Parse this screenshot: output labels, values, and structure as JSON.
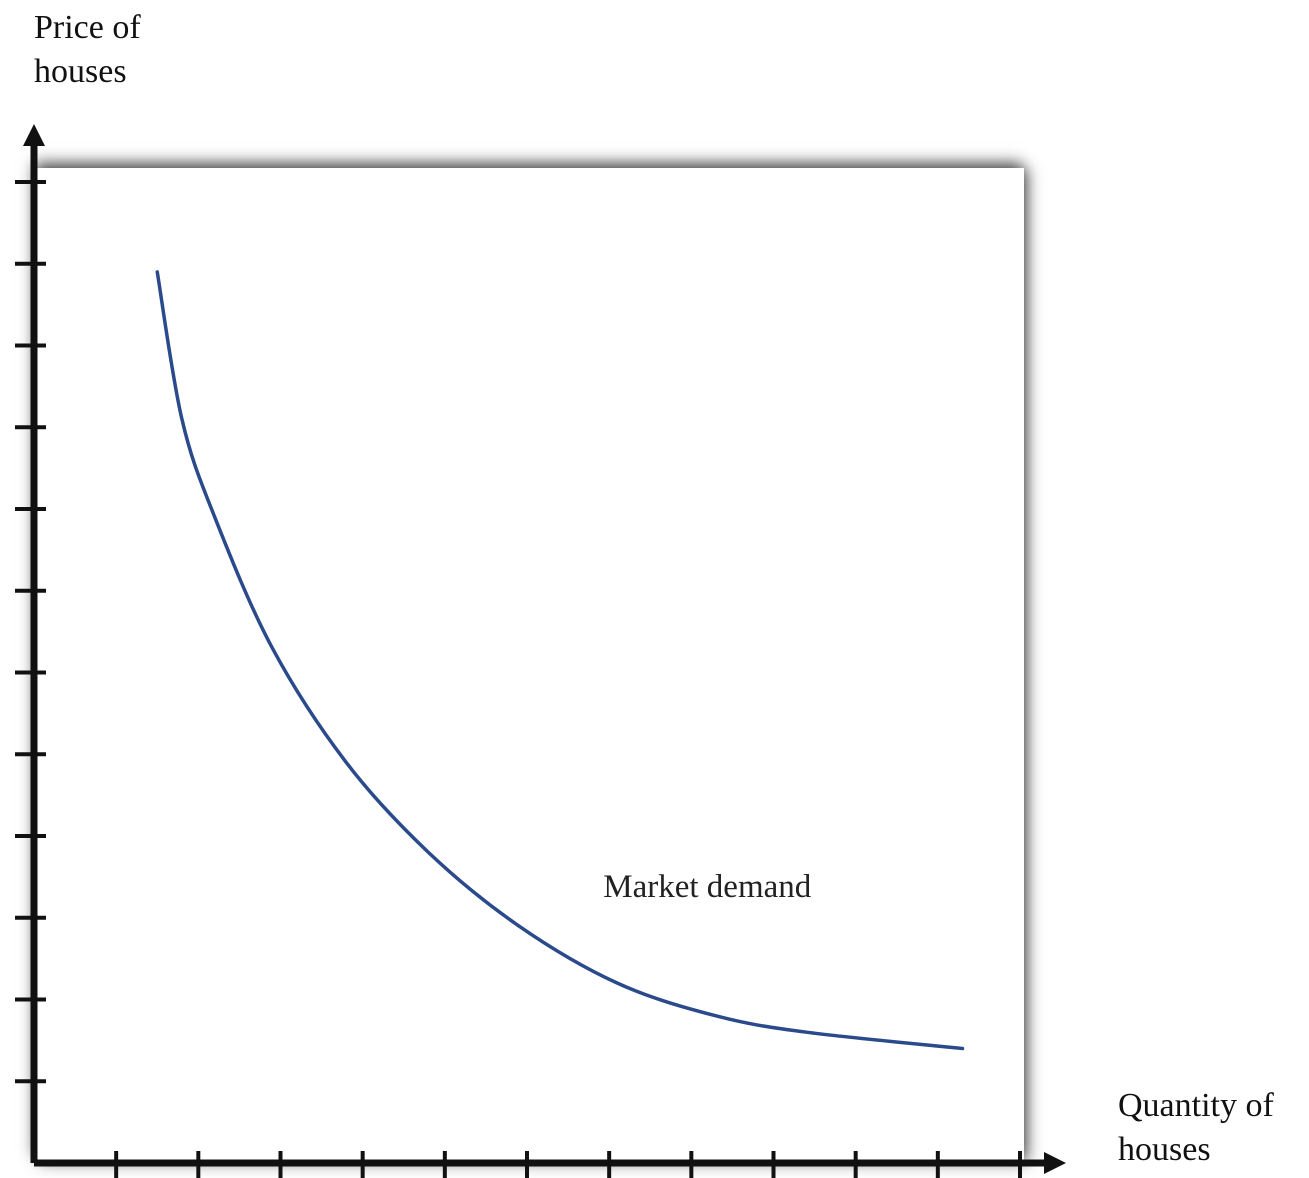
{
  "chart_data": {
    "type": "line",
    "ylabel_lines": [
      "Price of",
      "houses"
    ],
    "xlabel_lines": [
      "Quantity of",
      "houses"
    ],
    "xlim": [
      0,
      12
    ],
    "ylim": [
      0,
      12
    ],
    "grid": false,
    "series": [
      {
        "name": "Market demand",
        "color": "#2b4a8c",
        "points": [
          {
            "x": 1.5,
            "y": 10.9
          },
          {
            "x": 1.8,
            "y": 9.1
          },
          {
            "x": 2.2,
            "y": 7.9
          },
          {
            "x": 2.9,
            "y": 6.3
          },
          {
            "x": 3.8,
            "y": 4.9
          },
          {
            "x": 4.8,
            "y": 3.8
          },
          {
            "x": 5.9,
            "y": 2.9
          },
          {
            "x": 7.1,
            "y": 2.2
          },
          {
            "x": 8.3,
            "y": 1.8
          },
          {
            "x": 9.4,
            "y": 1.6
          },
          {
            "x": 11.3,
            "y": 1.4
          }
        ]
      }
    ],
    "annotations": [
      {
        "text": "Market demand",
        "x": 7.5,
        "y": 3.4
      }
    ]
  }
}
